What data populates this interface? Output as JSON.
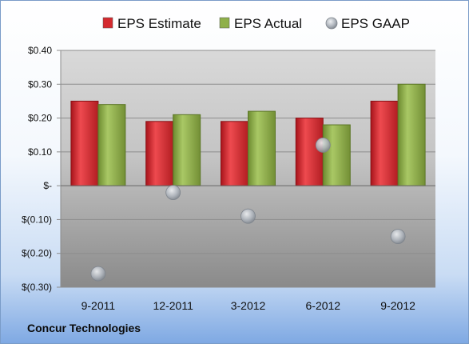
{
  "company": "Concur Technologies",
  "colors": {
    "estimate": "#d42a2f",
    "actual": "#8fb04a",
    "gaap": "#b8bec6"
  },
  "chart_data": {
    "type": "bar",
    "title": "",
    "xlabel": "",
    "ylabel": "",
    "categories": [
      "9-2011",
      "12-2011",
      "3-2012",
      "6-2012",
      "9-2012"
    ],
    "series": [
      {
        "name": "EPS Estimate",
        "type": "bar",
        "values": [
          0.25,
          0.19,
          0.19,
          0.2,
          0.25
        ]
      },
      {
        "name": "EPS Actual",
        "type": "bar",
        "values": [
          0.24,
          0.21,
          0.22,
          0.18,
          0.3
        ]
      },
      {
        "name": "EPS GAAP",
        "type": "scatter",
        "values": [
          -0.26,
          -0.02,
          -0.09,
          0.12,
          -0.15
        ]
      }
    ],
    "ylim": [
      -0.3,
      0.4
    ],
    "yticks": [
      0.4,
      0.3,
      0.2,
      0.1,
      0.0,
      -0.1,
      -0.2,
      -0.3
    ],
    "ytick_labels": [
      "$0.40",
      "$0.30",
      "$0.20",
      "$0.10",
      "$-",
      "$(0.10)",
      "$(0.20)",
      "$(0.30)"
    ],
    "grid": true,
    "legend_position": "top"
  }
}
